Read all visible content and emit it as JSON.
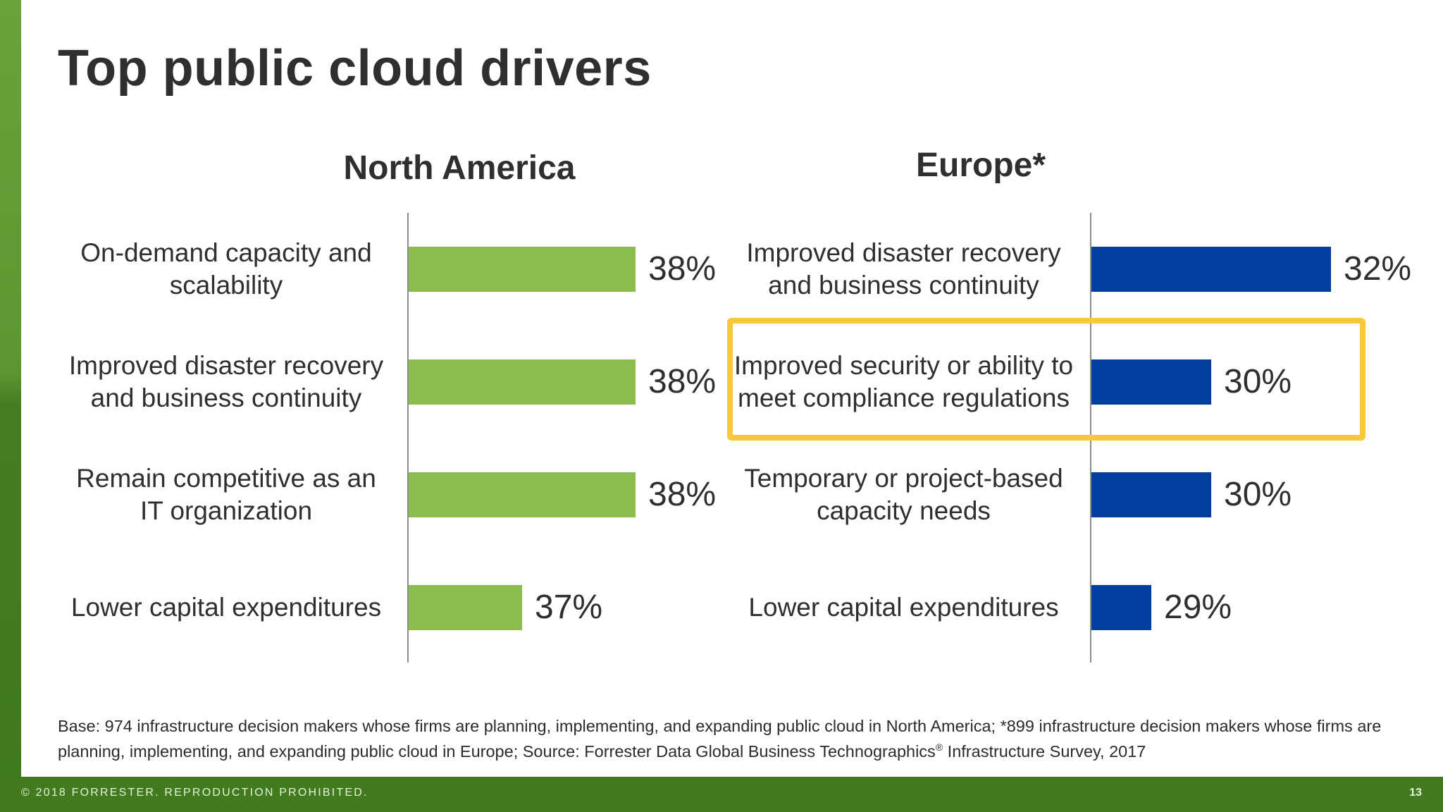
{
  "title": "Top public cloud drivers",
  "chart_data": [
    {
      "type": "bar",
      "orientation": "horizontal",
      "title": "North America",
      "color": "#8bbd4e",
      "categories": [
        "On-demand capacity and scalability",
        "Improved disaster recovery and business continuity",
        "Remain competitive as an IT organization",
        "Lower capital expenditures"
      ],
      "values": [
        38,
        38,
        38,
        37
      ],
      "value_labels": [
        "38%",
        "38%",
        "38%",
        "37%"
      ],
      "xlim": [
        36,
        39
      ],
      "grid": false,
      "legend": "none"
    },
    {
      "type": "bar",
      "orientation": "horizontal",
      "title": "Europe*",
      "color": "#003f9e",
      "categories": [
        "Improved disaster recovery and business continuity",
        "Improved security or ability to meet compliance regulations",
        "Temporary or project-based capacity needs",
        "Lower capital expenditures"
      ],
      "values": [
        32,
        30,
        30,
        29
      ],
      "value_labels": [
        "32%",
        "30%",
        "30%",
        "29%"
      ],
      "xlim": [
        28,
        33
      ],
      "highlighted_category": "Improved security or ability to meet compliance regulations",
      "highlight_color": "#f6c83a",
      "grid": false,
      "legend": "none"
    }
  ],
  "footnote": {
    "text_before": "Base: 974 infrastructure decision makers whose firms are planning, implementing, and expanding public cloud in North America; *899 infrastructure decision makers whose firms are planning, implementing, and expanding public cloud in Europe; Source: Forrester Data Global Business Technographics",
    "registered_mark": "®",
    "text_after": " Infrastructure Survey, 2017"
  },
  "footer": {
    "copyright": "© 2018 FORRESTER. REPRODUCTION PROHIBITED.",
    "page_number": "13"
  }
}
